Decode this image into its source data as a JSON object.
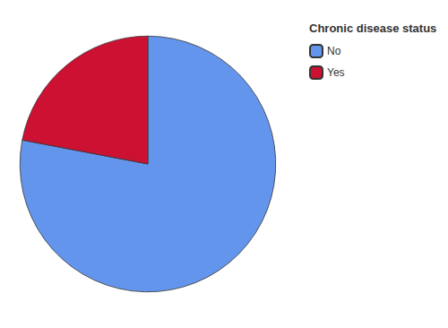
{
  "chart_data": {
    "type": "pie",
    "categories": [
      "No",
      "Yes"
    ],
    "values": [
      78,
      22
    ],
    "colors": [
      "#6495ED",
      "#CC1133"
    ],
    "legend_title": "Chronic disease status",
    "legend": "upper right"
  }
}
